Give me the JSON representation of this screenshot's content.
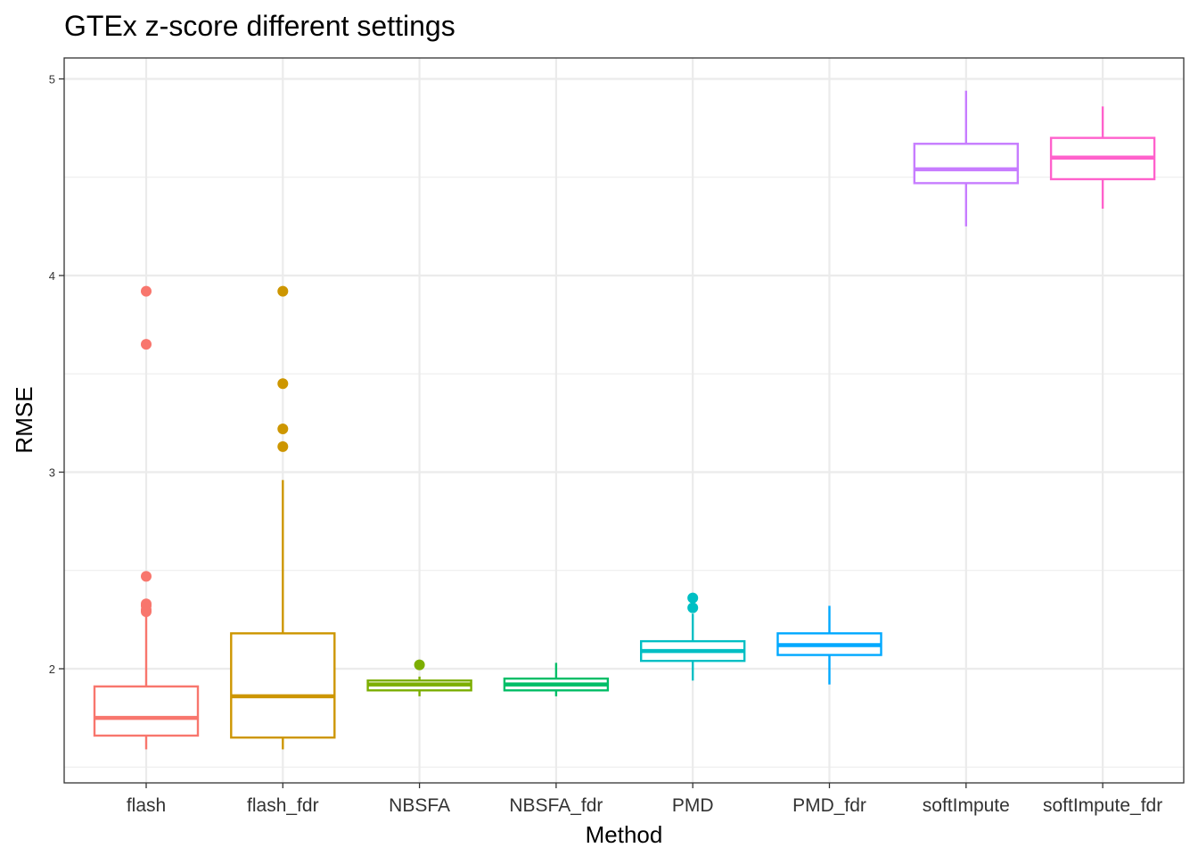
{
  "chart_data": {
    "type": "boxplot",
    "title": "GTEx z-score different settings",
    "xlabel": "Method",
    "ylabel": "RMSE",
    "ylim": [
      1.42,
      5.1
    ],
    "yticks": [
      "2",
      "3",
      "4",
      "5"
    ],
    "ytick_values": [
      2,
      3,
      4,
      5
    ],
    "grid": true,
    "legend": "none",
    "categories": [
      "flash",
      "flash_fdr",
      "NBSFA",
      "NBSFA_fdr",
      "PMD",
      "PMD_fdr",
      "softImpute",
      "softImpute_fdr"
    ],
    "series": [
      {
        "name": "flash",
        "color": "#F8766D",
        "lower_whisker": 1.59,
        "q1": 1.66,
        "median": 1.75,
        "q3": 1.91,
        "upper_whisker": 2.29,
        "outliers": [
          3.92,
          3.65,
          2.47,
          2.33,
          2.32,
          2.3,
          2.29
        ]
      },
      {
        "name": "flash_fdr",
        "color": "#CD9600",
        "lower_whisker": 1.59,
        "q1": 1.65,
        "median": 1.86,
        "q3": 2.18,
        "upper_whisker": 2.96,
        "outliers": [
          3.92,
          3.45,
          3.22,
          3.13
        ]
      },
      {
        "name": "NBSFA",
        "color": "#7CAE00",
        "lower_whisker": 1.86,
        "q1": 1.89,
        "median": 1.92,
        "q3": 1.94,
        "upper_whisker": 1.96,
        "outliers": [
          2.02
        ]
      },
      {
        "name": "NBSFA_fdr",
        "color": "#00BE67",
        "lower_whisker": 1.86,
        "q1": 1.89,
        "median": 1.92,
        "q3": 1.95,
        "upper_whisker": 2.03,
        "outliers": []
      },
      {
        "name": "PMD",
        "color": "#00BFC4",
        "lower_whisker": 1.94,
        "q1": 2.04,
        "median": 2.09,
        "q3": 2.14,
        "upper_whisker": 2.28,
        "outliers": [
          2.36,
          2.31
        ]
      },
      {
        "name": "PMD_fdr",
        "color": "#00A9FF",
        "lower_whisker": 1.92,
        "q1": 2.07,
        "median": 2.12,
        "q3": 2.18,
        "upper_whisker": 2.32,
        "outliers": []
      },
      {
        "name": "softImpute",
        "color": "#C77CFF",
        "lower_whisker": 4.25,
        "q1": 4.47,
        "median": 4.54,
        "q3": 4.67,
        "upper_whisker": 4.94,
        "outliers": []
      },
      {
        "name": "softImpute_fdr",
        "color": "#FF61CC",
        "lower_whisker": 4.34,
        "q1": 4.49,
        "median": 4.6,
        "q3": 4.7,
        "upper_whisker": 4.86,
        "outliers": []
      }
    ]
  }
}
